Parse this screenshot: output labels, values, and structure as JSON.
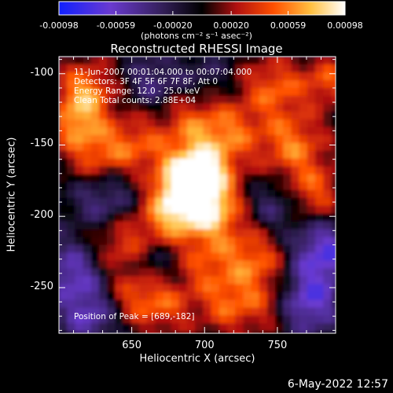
{
  "chart_data": {
    "type": "heatmap",
    "title": "Reconstructed RHESSI Image",
    "xlabel": "Heliocentric X (arcsec)",
    "ylabel": "Heliocentric Y (arcsec)",
    "xlim": [
      600,
      790
    ],
    "ylim": [
      -282,
      -88
    ],
    "x_ticks": [
      "650",
      "700",
      "750"
    ],
    "x_tick_values": [
      650,
      700,
      750
    ],
    "y_ticks": [
      "-100",
      "-150",
      "-200",
      "-250"
    ],
    "y_tick_values": [
      -100,
      -150,
      -200,
      -250
    ],
    "colorbar": {
      "ticks": [
        "-0.00098",
        "-0.00059",
        "-0.00020",
        "0.00020",
        "0.00059",
        "0.00098"
      ],
      "tick_values": [
        -0.00098,
        -0.00059,
        -0.0002,
        0.0002,
        0.00059,
        0.00098
      ],
      "range": [
        -0.00098,
        0.00098
      ],
      "units": "(photons cm⁻² s⁻¹ asec⁻²)",
      "colors": [
        "#1020ff",
        "#6a3ad0",
        "#34205a",
        "#000000",
        "#b01010",
        "#ff5000",
        "#ffc040",
        "#ffffff"
      ]
    },
    "annotations": {
      "time": "11-Jun-2007 00:01:04.000 to 00:07:04.000",
      "detectors": "Detectors: 3F 4F 5F 6F 7F 8F, Att 0",
      "energy": "Energy Range: 12.0 - 25.0 keV",
      "clean": "Clean     Total counts: 2.88E+04",
      "peak": "Position of Peak = [689,-182]"
    },
    "peak_position": [
      689,
      -182
    ],
    "blobs": [
      {
        "x": 689,
        "y": -182,
        "amp": 1.0,
        "r": 15
      },
      {
        "x": 697,
        "y": -165,
        "amp": 0.7,
        "r": 16
      },
      {
        "x": 706,
        "y": -200,
        "amp": 0.6,
        "r": 16
      },
      {
        "x": 672,
        "y": -202,
        "amp": 0.45,
        "r": 15
      },
      {
        "x": 618,
        "y": -112,
        "amp": 0.6,
        "r": 14
      },
      {
        "x": 612,
        "y": -135,
        "amp": 0.5,
        "r": 13
      },
      {
        "x": 628,
        "y": -160,
        "amp": 0.55,
        "r": 16
      },
      {
        "x": 655,
        "y": -150,
        "amp": 0.4,
        "r": 15
      },
      {
        "x": 640,
        "y": -220,
        "amp": 0.45,
        "r": 16
      },
      {
        "x": 652,
        "y": -256,
        "amp": 0.4,
        "r": 14
      },
      {
        "x": 674,
        "y": -262,
        "amp": 0.38,
        "r": 14
      },
      {
        "x": 690,
        "y": -132,
        "amp": 0.35,
        "r": 14
      },
      {
        "x": 718,
        "y": -140,
        "amp": 0.45,
        "r": 15
      },
      {
        "x": 748,
        "y": -110,
        "amp": 0.5,
        "r": 15
      },
      {
        "x": 760,
        "y": -150,
        "amp": 0.55,
        "r": 16
      },
      {
        "x": 774,
        "y": -185,
        "amp": 0.5,
        "r": 15
      },
      {
        "x": 785,
        "y": -105,
        "amp": 0.45,
        "r": 12
      },
      {
        "x": 735,
        "y": -232,
        "amp": 0.55,
        "r": 16
      },
      {
        "x": 716,
        "y": -262,
        "amp": 0.45,
        "r": 14
      },
      {
        "x": 744,
        "y": -265,
        "amp": 0.3,
        "r": 13
      },
      {
        "x": 700,
        "y": -235,
        "amp": 0.35,
        "r": 13
      },
      {
        "x": 632,
        "y": -185,
        "amp": -0.55,
        "r": 17
      },
      {
        "x": 610,
        "y": -240,
        "amp": -0.6,
        "r": 17
      },
      {
        "x": 622,
        "y": -272,
        "amp": -0.5,
        "r": 14
      },
      {
        "x": 665,
        "y": -105,
        "amp": -0.4,
        "r": 13
      },
      {
        "x": 666,
        "y": -232,
        "amp": -0.3,
        "r": 12
      },
      {
        "x": 782,
        "y": -225,
        "amp": -0.7,
        "r": 17
      },
      {
        "x": 770,
        "y": -262,
        "amp": -0.65,
        "r": 16
      },
      {
        "x": 748,
        "y": -192,
        "amp": -0.4,
        "r": 14
      },
      {
        "x": 700,
        "y": -100,
        "amp": -0.25,
        "r": 12
      }
    ]
  },
  "footer": {
    "date": "6-May-2022 12:57"
  }
}
